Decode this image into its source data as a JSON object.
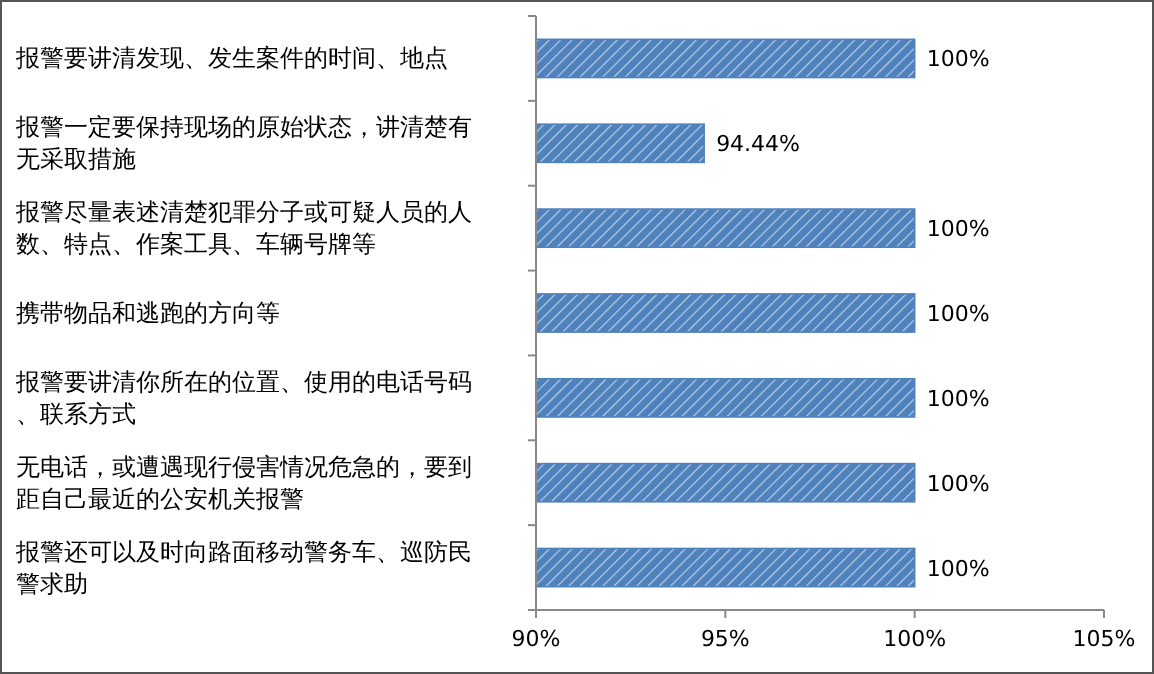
{
  "chart_data": {
    "type": "bar",
    "orientation": "horizontal",
    "categories": [
      "报警要讲清发现、发生案件的时间、地点",
      "报警一定要保持现场的原始状态，讲清楚有无采取措施",
      "报警尽量表述清楚犯罪分子或可疑人员的人数、特点、作案工具、车辆号牌等",
      "携带物品和逃跑的方向等",
      "报警要讲清你所在的位置、使用的电话号码、联系方式",
      "无电话，或遭遇现行侵害情况危急的，要到距自己最近的公安机关报警",
      "报警还可以及时向路面移动警务车、巡防民警求助"
    ],
    "values": [
      100,
      94.44,
      100,
      100,
      100,
      100,
      100
    ],
    "value_labels": [
      "100%",
      "94.44%",
      "100%",
      "100%",
      "100%",
      "100%",
      "100%"
    ],
    "color": "#4f81bd",
    "xlim": [
      90,
      105
    ],
    "xticks": [
      {
        "value": 90,
        "label": "90%"
      },
      {
        "value": 95,
        "label": "95%"
      },
      {
        "value": 100,
        "label": "100%"
      },
      {
        "value": 105,
        "label": "105%"
      }
    ],
    "grid": false
  }
}
